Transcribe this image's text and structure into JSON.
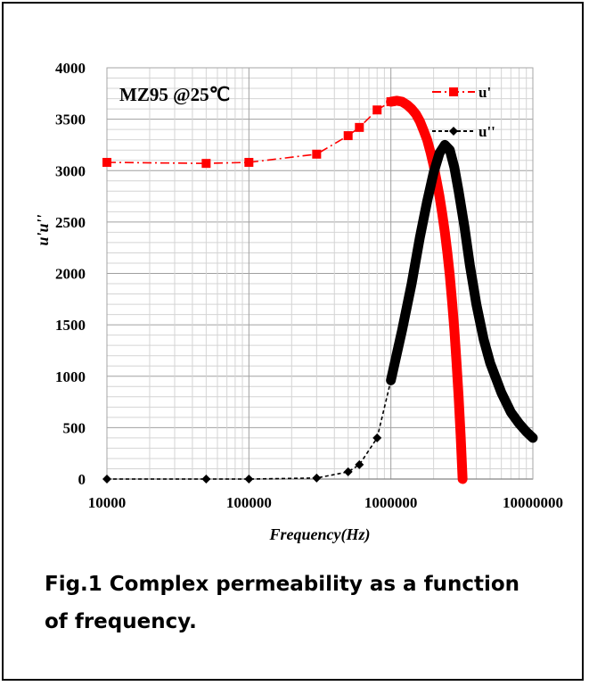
{
  "chart_data": {
    "type": "line",
    "annotation": "MZ95 @25℃",
    "xlabel": "Frequency(Hz)",
    "ylabel": "u'u''",
    "xscale": "log",
    "xlim": [
      10000,
      10000000
    ],
    "ylim": [
      0,
      4000
    ],
    "x_ticks": [
      10000,
      100000,
      1000000,
      10000000
    ],
    "x_tick_labels": [
      "10000",
      "100000",
      "1000000",
      "10000000"
    ],
    "y_ticks": [
      0,
      500,
      1000,
      1500,
      2000,
      2500,
      3000,
      3500,
      4000
    ],
    "y_tick_labels": [
      "0",
      "500",
      "1000",
      "1500",
      "2000",
      "2500",
      "3000",
      "3500",
      "4000"
    ],
    "grid": true,
    "legend_position": "top-right",
    "series": [
      {
        "name": "u'",
        "color": "#ff0000",
        "marker": "square",
        "line_style": "dash-dot",
        "x": [
          10000,
          50000,
          100000,
          300000,
          500000,
          600000,
          800000,
          1000000,
          1100000,
          1200000,
          1300000,
          1400000,
          1500000,
          1600000,
          1700000,
          1800000,
          1900000,
          2000000,
          2100000,
          2200000,
          2300000,
          2400000,
          2500000,
          2600000,
          2700000,
          2800000,
          2900000,
          3000000,
          3100000,
          3200000
        ],
        "y": [
          3080,
          3070,
          3080,
          3160,
          3340,
          3420,
          3590,
          3670,
          3680,
          3670,
          3640,
          3600,
          3550,
          3480,
          3390,
          3300,
          3180,
          3050,
          2900,
          2750,
          2580,
          2400,
          2200,
          1980,
          1720,
          1450,
          1130,
          800,
          420,
          0
        ]
      },
      {
        "name": "u''",
        "color": "#000000",
        "marker": "diamond",
        "line_style": "dashed",
        "x": [
          10000,
          50000,
          100000,
          300000,
          500000,
          600000,
          800000,
          1000000,
          1200000,
          1400000,
          1600000,
          1800000,
          2000000,
          2200000,
          2400000,
          2600000,
          2800000,
          3000000,
          3300000,
          3600000,
          4000000,
          4500000,
          5000000,
          6000000,
          7000000,
          8000000,
          9000000,
          10000000
        ],
        "y": [
          0,
          0,
          0,
          10,
          70,
          140,
          400,
          960,
          1450,
          1900,
          2350,
          2700,
          2980,
          3170,
          3250,
          3200,
          3030,
          2800,
          2450,
          2080,
          1700,
          1360,
          1130,
          840,
          650,
          540,
          460,
          400
        ]
      }
    ]
  },
  "caption": {
    "line1": "Fig.1 Complex permeability as a function",
    "line2": "of frequency."
  }
}
